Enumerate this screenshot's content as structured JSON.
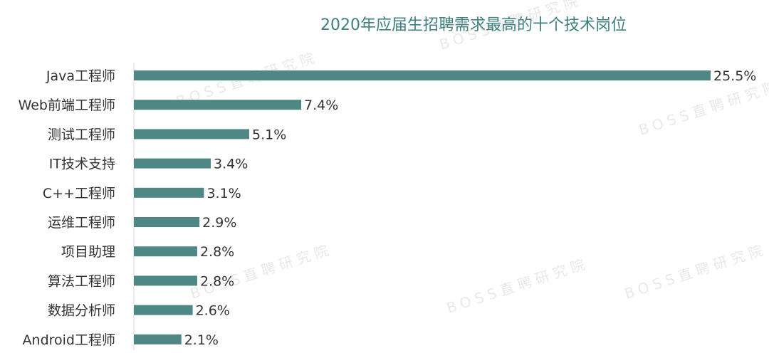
{
  "chart_data": {
    "type": "bar",
    "orientation": "horizontal",
    "title": "2020年应届生招聘需求最高的十个技术岗位",
    "categories": [
      "Java工程师",
      "Web前端工程师",
      "测试工程师",
      "IT技术支持",
      "C++工程师",
      "运维工程师",
      "项目助理",
      "算法工程师",
      "数据分析师",
      "Android工程师"
    ],
    "values": [
      25.5,
      7.4,
      5.1,
      3.4,
      3.1,
      2.9,
      2.8,
      2.8,
      2.6,
      2.1
    ],
    "value_labels": [
      "25.5%",
      "7.4%",
      "5.1%",
      "3.4%",
      "3.1%",
      "2.9%",
      "2.8%",
      "2.8%",
      "2.6%",
      "2.1%"
    ],
    "unit": "%",
    "xlim": [
      0,
      25.5
    ],
    "grid": false,
    "legend": "none",
    "bar_color": "#4e8784"
  },
  "watermark": "BOSS直聘研究院"
}
